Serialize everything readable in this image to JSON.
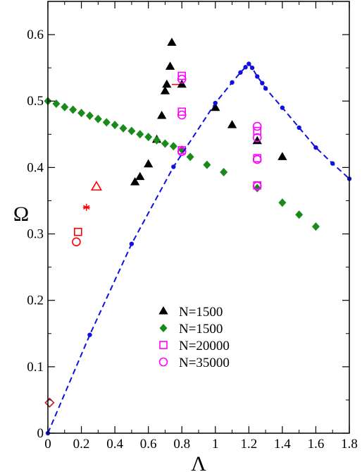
{
  "chart_data": {
    "type": "scatter",
    "title": "",
    "xlabel": "Λ",
    "ylabel": "Ω",
    "xlim": [
      0,
      1.8
    ],
    "ylim": [
      0,
      0.65
    ],
    "xticks": [
      "0",
      "0.2",
      "0.4",
      "0.6",
      "0.8",
      "1",
      "1.2",
      "1.4",
      "1.6",
      "1.8"
    ],
    "yticks": [
      "0",
      "0.1",
      "0.2",
      "0.3",
      "0.4",
      "0.5",
      "0.6"
    ],
    "legend_position": "center-bottom",
    "grid": false,
    "series": [
      {
        "name": "N=1500",
        "marker": "filled-triangle",
        "color": "#000000",
        "in_legend": true,
        "x": [
          0.52,
          0.55,
          0.6,
          0.65,
          0.68,
          0.7,
          0.71,
          0.73,
          0.74,
          0.8,
          1.0,
          1.1,
          1.25,
          1.4
        ],
        "y": [
          0.378,
          0.386,
          0.405,
          0.442,
          0.478,
          0.515,
          0.525,
          0.552,
          0.588,
          0.525,
          0.49,
          0.464,
          0.44,
          0.416
        ]
      },
      {
        "name": "N=1500",
        "marker": "filled-diamond",
        "color": "#1a8a1a",
        "in_legend": true,
        "x": [
          0.0,
          0.05,
          0.1,
          0.15,
          0.2,
          0.25,
          0.3,
          0.35,
          0.4,
          0.45,
          0.5,
          0.55,
          0.6,
          0.65,
          0.7,
          0.75,
          0.8,
          0.85,
          0.95,
          1.05,
          1.25,
          1.4,
          1.5,
          1.6
        ],
        "y": [
          0.5,
          0.496,
          0.491,
          0.487,
          0.482,
          0.478,
          0.473,
          0.468,
          0.464,
          0.459,
          0.455,
          0.45,
          0.446,
          0.441,
          0.436,
          0.432,
          0.427,
          0.416,
          0.404,
          0.393,
          0.369,
          0.347,
          0.329,
          0.311
        ]
      },
      {
        "name": "N=20000",
        "marker": "open-square",
        "color": "#ff00ff",
        "in_legend": true,
        "x": [
          0.8,
          0.8,
          0.8,
          1.25,
          1.25,
          1.25
        ],
        "y": [
          0.538,
          0.484,
          0.426,
          0.455,
          0.414,
          0.373
        ]
      },
      {
        "name": "N=35000",
        "marker": "open-circle",
        "color": "#ff00ff",
        "in_legend": true,
        "x": [
          0.8,
          0.8,
          0.8,
          1.25,
          1.25,
          1.25,
          1.25
        ],
        "y": [
          0.533,
          0.479,
          0.424,
          0.462,
          0.445,
          0.412,
          0.372
        ]
      },
      {
        "marker": "open-square",
        "color": "#ff0000",
        "in_legend": false,
        "x": [
          0.18
        ],
        "y": [
          0.303
        ]
      },
      {
        "marker": "open-circle",
        "color": "#ff0000",
        "in_legend": false,
        "x": [
          0.17
        ],
        "y": [
          0.288
        ]
      },
      {
        "marker": "asterisk",
        "color": "#ff0000",
        "in_legend": false,
        "x": [
          0.23
        ],
        "y": [
          0.34
        ]
      },
      {
        "marker": "open-triangle",
        "color": "#ff0000",
        "in_legend": false,
        "x": [
          0.29
        ],
        "y": [
          0.371
        ]
      },
      {
        "marker": "open-diamond",
        "color": "#b22222",
        "in_legend": false,
        "x": [
          0.01
        ],
        "y": [
          0.046
        ]
      },
      {
        "marker": "small-dot",
        "color": "#1010e0",
        "in_legend": false,
        "line": "dashed",
        "x": [
          0.0,
          0.25,
          0.5,
          0.75,
          1.0,
          1.1,
          1.15,
          1.18,
          1.2,
          1.22,
          1.25,
          1.28,
          1.3,
          1.4,
          1.5,
          1.6,
          1.7,
          1.8
        ],
        "y": [
          0.0,
          0.148,
          0.285,
          0.401,
          0.497,
          0.528,
          0.543,
          0.551,
          0.556,
          0.55,
          0.537,
          0.527,
          0.519,
          0.49,
          0.46,
          0.43,
          0.406,
          0.383
        ]
      }
    ],
    "hline_segments": [
      {
        "color": "#ff0000",
        "x": [
          0.74,
          0.8
        ],
        "y": 0.525
      }
    ]
  }
}
